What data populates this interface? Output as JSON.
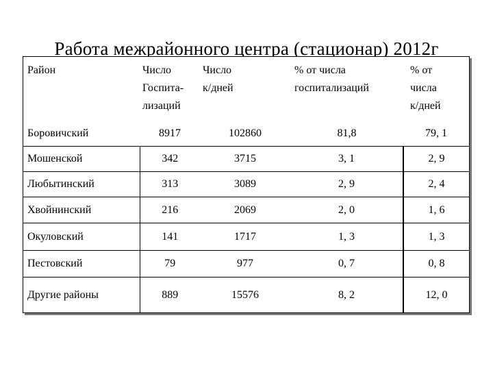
{
  "title": "Работа межрайонного центра (стационар) 2012г",
  "table": {
    "headers": [
      "Район",
      "Число\nГоспита-\nлизаций",
      "Число\nк/дней",
      "% от числа\nгоспитализаций",
      "% от\nчисла\nк/дней"
    ],
    "rows": [
      [
        "Боровичский",
        "8917",
        "102860",
        "81,8",
        "79, 1"
      ],
      [
        "Мошенской",
        "342",
        "3715",
        "3, 1",
        "2, 9"
      ],
      [
        "Любытинский",
        "313",
        "3089",
        "2, 9",
        "2, 4"
      ],
      [
        "Хвойнинский",
        "216",
        "2069",
        "2, 0",
        "1, 6"
      ],
      [
        "Окуловский",
        "141",
        "1717",
        "1, 3",
        "1, 3"
      ],
      [
        "Пестовский",
        "79",
        "977",
        "0, 7",
        "0, 8"
      ],
      [
        "Другие районы",
        "889",
        "15576",
        "8, 2",
        "12, 0"
      ]
    ]
  }
}
